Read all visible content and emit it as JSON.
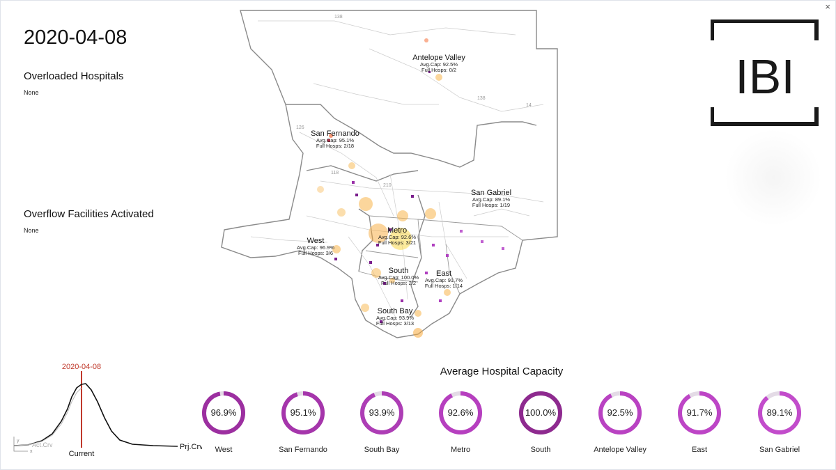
{
  "window": {
    "close_glyph": "×"
  },
  "date": "2020-04-08",
  "overloaded": {
    "title": "Overloaded Hospitals",
    "value": "None"
  },
  "overflow": {
    "title": "Overflow Facilities Activated",
    "value": "None"
  },
  "logo": {
    "text": "IBI"
  },
  "map": {
    "road_labels": [
      "138",
      "138",
      "14",
      "126",
      "118",
      "210"
    ],
    "regions": [
      {
        "name": "Antelope Valley",
        "avg": "Avg.Cap: 92.5%",
        "full": "Full Hosps: 0/2"
      },
      {
        "name": "San Fernando",
        "avg": "Avg.Cap: 95.1%",
        "full": "Full Hosps: 2/18"
      },
      {
        "name": "San Gabriel",
        "avg": "Avg.Cap: 89.1%",
        "full": "Full Hosps: 1/19"
      },
      {
        "name": "Metro",
        "avg": "Avg.Cap: 92.6%",
        "full": "Full Hosps: 3/21"
      },
      {
        "name": "West",
        "avg": "Avg.Cap: 96.9%",
        "full": "Full Hosps: 3/6"
      },
      {
        "name": "South",
        "avg": "Avg.Cap: 100.0%",
        "full": "Full Hosps: 2/2"
      },
      {
        "name": "East",
        "avg": "Avg.Cap: 91.7%",
        "full": "Full Hosps: 1/14"
      },
      {
        "name": "South Bay",
        "avg": "Avg.Cap: 93.9%",
        "full": "Full Hosps: 3/13"
      }
    ]
  },
  "curve": {
    "date_label": "2020-04-08",
    "current_label": "Current",
    "projected_label": "Prj.Crv",
    "actual_label": "Act.Crv",
    "y_axis": "y",
    "x_axis": "x"
  },
  "capacity": {
    "title": "Average Hospital Capacity",
    "items": [
      {
        "label": "West",
        "value_text": "96.9%",
        "value": 96.9,
        "color": "#9c2fa0"
      },
      {
        "label": "San Fernando",
        "value_text": "95.1%",
        "value": 95.1,
        "color": "#a535ab"
      },
      {
        "label": "South Bay",
        "value_text": "93.9%",
        "value": 93.9,
        "color": "#ad3db5"
      },
      {
        "label": "Metro",
        "value_text": "92.6%",
        "value": 92.6,
        "color": "#b63fbf"
      },
      {
        "label": "South",
        "value_text": "100.0%",
        "value": 100,
        "color": "#8e2a8f"
      },
      {
        "label": "Antelope Valley",
        "value_text": "92.5%",
        "value": 92.5,
        "color": "#b942c2"
      },
      {
        "label": "East",
        "value_text": "91.7%",
        "value": 91.7,
        "color": "#bd45c6"
      },
      {
        "label": "San Gabriel",
        "value_text": "89.1%",
        "value": 89.1,
        "color": "#c24ccb"
      }
    ]
  }
}
